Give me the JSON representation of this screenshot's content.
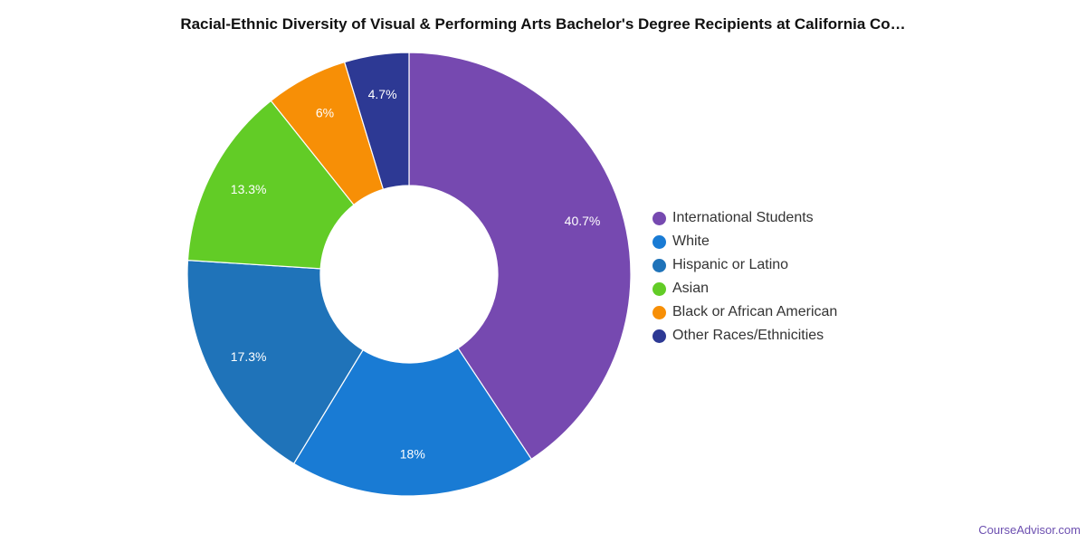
{
  "chart_data": {
    "type": "pie",
    "donut": true,
    "title": "Racial-Ethnic Diversity of Visual & Performing Arts Bachelor's Degree Recipients at California Co…",
    "legend_position": "right",
    "slices": [
      {
        "label": "International Students",
        "value": 40.7,
        "display": "40.7%",
        "color": "#7649b0"
      },
      {
        "label": "White",
        "value": 18,
        "display": "18%",
        "color": "#197bd4"
      },
      {
        "label": "Hispanic or Latino",
        "value": 17.3,
        "display": "17.3%",
        "color": "#1f73b9"
      },
      {
        "label": "Asian",
        "value": 13.3,
        "display": "13.3%",
        "color": "#62cc26"
      },
      {
        "label": "Black or African American",
        "value": 6,
        "display": "6%",
        "color": "#f78f06"
      },
      {
        "label": "Other Races/Ethnicities",
        "value": 4.7,
        "display": "4.7%",
        "color": "#2d3994"
      }
    ]
  },
  "credit": "CourseAdvisor.com"
}
